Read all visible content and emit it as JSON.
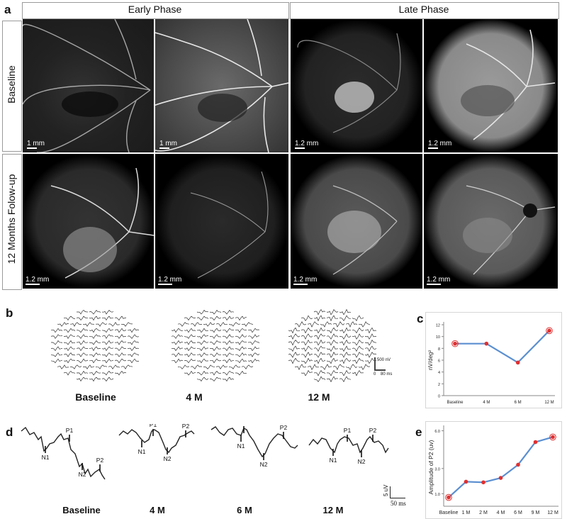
{
  "panels": {
    "a": "a",
    "b": "b",
    "c": "c",
    "d": "d",
    "e": "e"
  },
  "panel_a": {
    "column_headers": [
      "Early Phase",
      "Late Phase"
    ],
    "row_labels": [
      "Baseline",
      "12 Months Folow-up"
    ],
    "scale_bars": [
      "1 mm",
      "1 mm",
      "1.2 mm",
      "1.2 mm",
      "1.2 mm",
      "1.2 mm",
      "1.2 mm",
      "1.2 mm"
    ]
  },
  "panel_b": {
    "labels": [
      "Baseline",
      "4 M",
      "12 M"
    ],
    "scale": {
      "amplitude": "500 nV",
      "zero": "0",
      "time": "80 ms"
    }
  },
  "panel_d": {
    "labels": [
      "Baseline",
      "4 M",
      "6 M",
      "12 M"
    ],
    "peaks": [
      "N1",
      "P1",
      "N2",
      "P2"
    ],
    "scale": {
      "amplitude": "5 uV",
      "time": "50 ms"
    }
  },
  "chart_data": [
    {
      "type": "line",
      "panel": "c",
      "categories": [
        "Baseline",
        "4 M",
        "6 M",
        "12 M"
      ],
      "series": [
        {
          "values": [
            8.8,
            8.8,
            5.6,
            11.0
          ]
        }
      ],
      "ylabel": "nV/deg²",
      "yticks": [
        0,
        2,
        4,
        6,
        8,
        10,
        12
      ],
      "ylim": [
        0,
        12
      ],
      "line_color": "#5b8fd0",
      "marker_color": "#e03030"
    },
    {
      "type": "line",
      "panel": "e",
      "categories": [
        "Baseline",
        "1 M",
        "2 M",
        "4 M",
        "6 M",
        "9 M",
        "12 M"
      ],
      "series": [
        {
          "values": [
            0.7,
            1.95,
            1.9,
            2.25,
            3.3,
            5.1,
            5.5
          ]
        }
      ],
      "ylabel": "Amplitude of P2 (uv)",
      "yticks": [
        1.0,
        3.0,
        6.0
      ],
      "ylim": [
        0,
        6.2
      ],
      "line_color": "#5b8fd0",
      "marker_color": "#e03030"
    }
  ]
}
